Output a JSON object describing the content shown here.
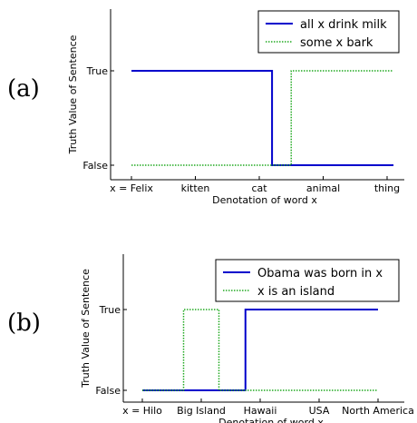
{
  "chart_data": [
    {
      "type": "line",
      "panel_label": "(a)",
      "title": "",
      "xlabel": "Denotation of word x",
      "ylabel": "Truth Value of Sentence",
      "categories": [
        "x = Felix",
        "kitten",
        "cat",
        "animal",
        "thing"
      ],
      "yticks": [
        "False",
        "True"
      ],
      "grid": false,
      "legend_position": "top-right",
      "series": [
        {
          "name": "all x drink milk",
          "style": "solid",
          "color": "#0000cc",
          "points": [
            [
              0,
              1
            ],
            [
              2.2,
              1
            ],
            [
              2.2,
              0
            ],
            [
              4.1,
              0
            ]
          ]
        },
        {
          "name": "some x bark",
          "style": "dotted",
          "color": "#22aa22",
          "points": [
            [
              0,
              0
            ],
            [
              2.5,
              0
            ],
            [
              2.5,
              1
            ],
            [
              4.1,
              1
            ]
          ]
        }
      ]
    },
    {
      "type": "line",
      "panel_label": "(b)",
      "title": "",
      "xlabel": "Denotation of word x",
      "ylabel": "Truth Value of Sentence",
      "categories": [
        "x = Hilo",
        "Big Island",
        "Hawaii",
        "USA",
        "North America"
      ],
      "yticks": [
        "False",
        "True"
      ],
      "grid": false,
      "legend_position": "top-right",
      "series": [
        {
          "name": "Obama was born in x",
          "style": "solid",
          "color": "#0000cc",
          "points": [
            [
              0,
              0
            ],
            [
              1.75,
              0
            ],
            [
              1.75,
              1
            ],
            [
              4.0,
              1
            ]
          ]
        },
        {
          "name": "x is an island",
          "style": "dotted",
          "color": "#22aa22",
          "points": [
            [
              0,
              0
            ],
            [
              0.7,
              0
            ],
            [
              0.7,
              1
            ],
            [
              1.3,
              1
            ],
            [
              1.3,
              0
            ],
            [
              4.0,
              0
            ]
          ]
        }
      ]
    }
  ]
}
